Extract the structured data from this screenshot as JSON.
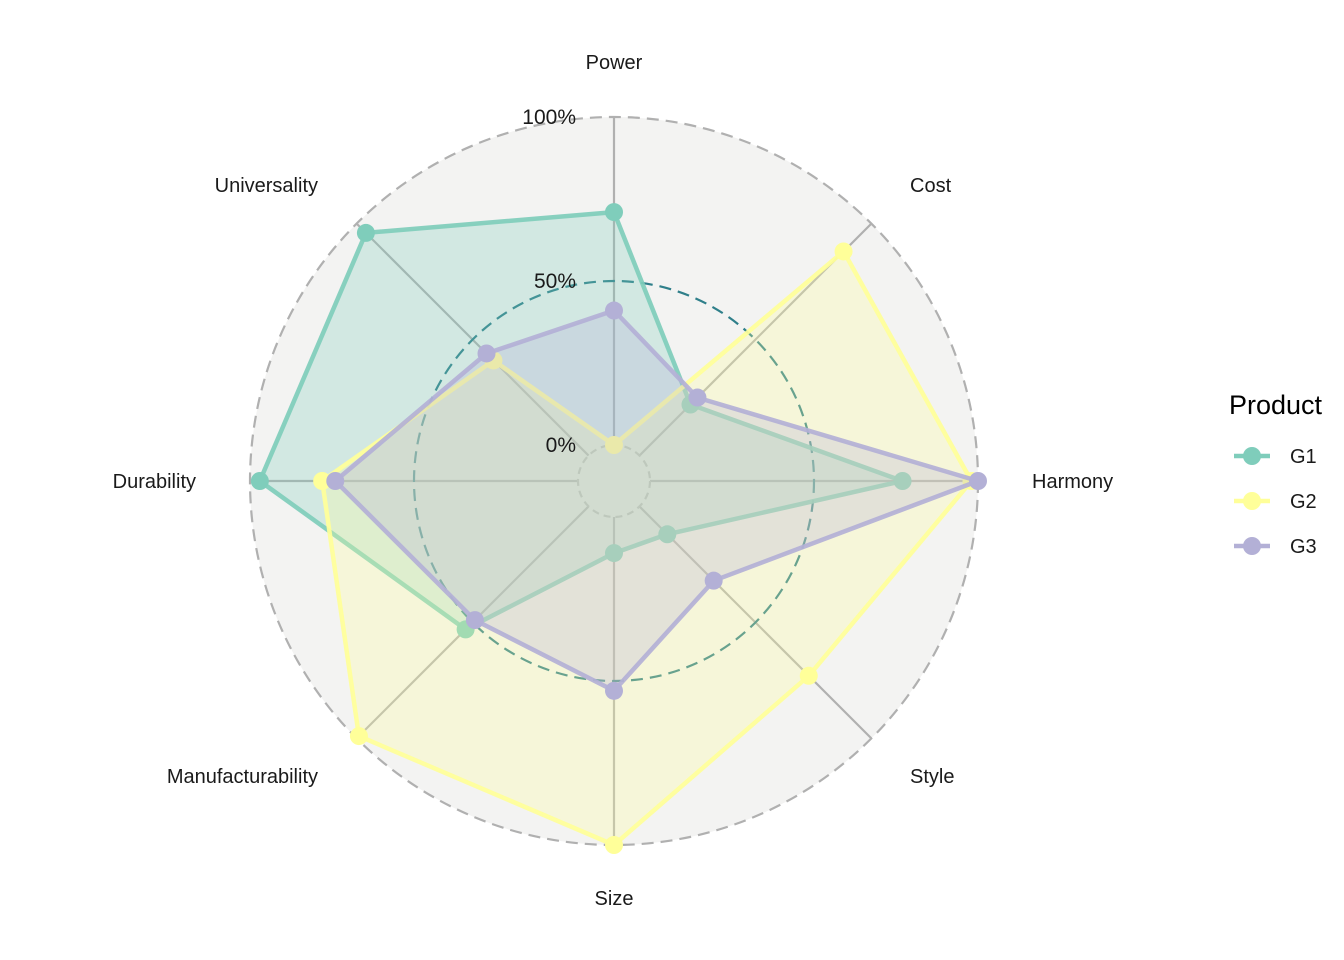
{
  "chart_data": {
    "type": "radar",
    "axes": [
      "Power",
      "Cost",
      "Harmony",
      "Style",
      "Size",
      "Manufacturability",
      "Durability",
      "Universality"
    ],
    "grid_labels": [
      "0%",
      "50%",
      "100%"
    ],
    "ylim": [
      0,
      1
    ],
    "legend": {
      "title": "Product",
      "position": "right"
    },
    "series": [
      {
        "name": "G1",
        "color": "#7fcdbb",
        "values": [
          0.71,
          0.22,
          0.77,
          0.12,
          0.11,
          0.53,
          0.97,
          0.96
        ]
      },
      {
        "name": "G2",
        "color": "#ffff99",
        "values": [
          0.0,
          0.88,
          0.98,
          0.73,
          1.0,
          0.99,
          0.78,
          0.41
        ]
      },
      {
        "name": "G3",
        "color": "#b3b0d6",
        "values": [
          0.41,
          0.25,
          1.0,
          0.32,
          0.53,
          0.49,
          0.74,
          0.44
        ]
      }
    ]
  }
}
